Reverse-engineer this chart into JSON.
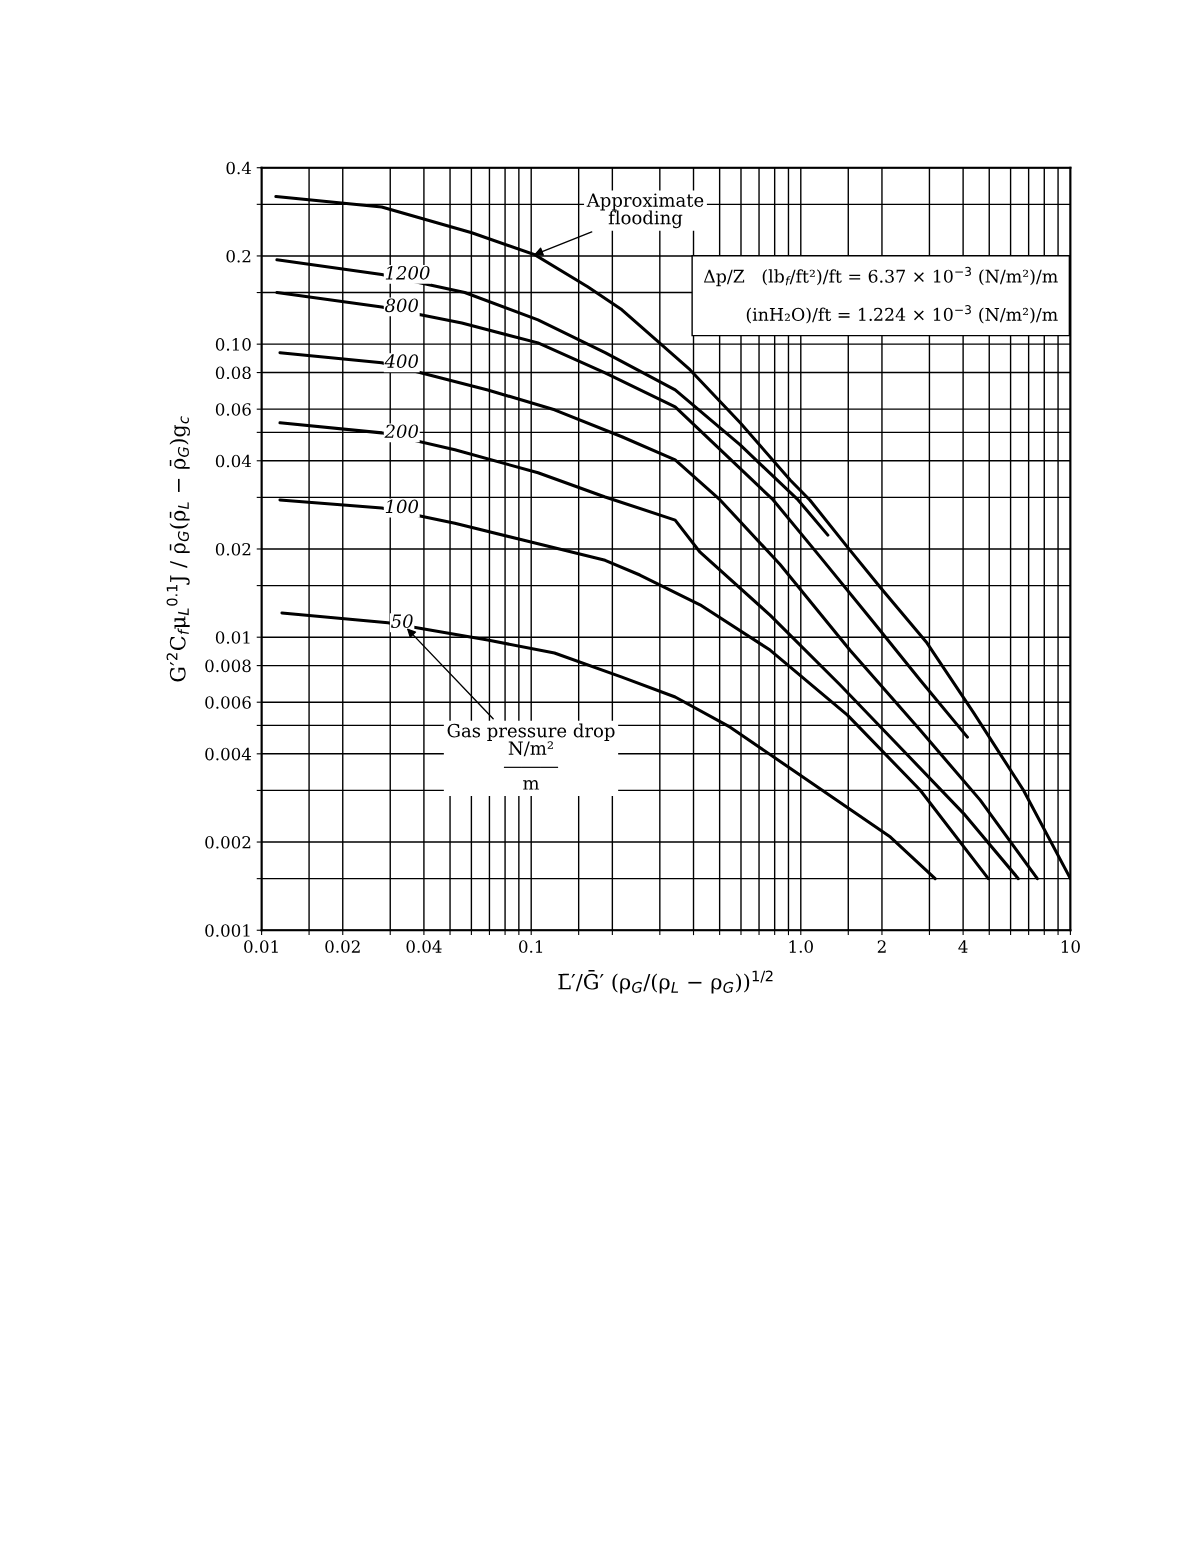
{
  "chart_data": {
    "type": "line",
    "log": "xy",
    "grid": true,
    "marker": "none",
    "line_style": "solid",
    "xlabel": "L̄′/Ḡ′ (ρ$_{G}$/(ρ$_{L}$ − ρ$_{G}$))$^{1/2}$",
    "ylabel": "G′$^{2}$C$_{f}$μ$_{L}$$^{0.1}$J / ρ̄$_{G}$(ρ̄$_{L}$ − ρ̄$_{G}$)g$_{c}$",
    "xlim": [
      0.01,
      10
    ],
    "ylim": [
      0.001,
      0.4
    ],
    "xticks": [
      0.01,
      0.02,
      0.04,
      0.1,
      {
        "value": 1,
        "label": "1.0"
      },
      2,
      4,
      10,
      {
        "value": 0.015,
        "label": null
      },
      {
        "value": 0.03,
        "label": null
      },
      {
        "value": 0.05,
        "label": null
      },
      {
        "value": 0.06,
        "label": null
      },
      {
        "value": 0.07,
        "label": null
      },
      {
        "value": 0.08,
        "label": null
      },
      {
        "value": 0.09,
        "label": null
      },
      {
        "value": 0.15,
        "label": null
      },
      {
        "value": 0.2,
        "label": null
      },
      {
        "value": 0.3,
        "label": null
      },
      {
        "value": 0.4,
        "label": null
      },
      {
        "value": 0.5,
        "label": null
      },
      {
        "value": 0.6,
        "label": null
      },
      {
        "value": 0.7,
        "label": null
      },
      {
        "value": 0.8,
        "label": null
      },
      {
        "value": 0.9,
        "label": null
      },
      {
        "value": 1.5,
        "label": null
      },
      {
        "value": 3,
        "label": null
      },
      {
        "value": 5,
        "label": null
      },
      {
        "value": 6,
        "label": null
      },
      {
        "value": 7,
        "label": null
      },
      {
        "value": 8,
        "label": null
      },
      {
        "value": 9,
        "label": null
      }
    ],
    "yticks": [
      0.001,
      0.002,
      0.004,
      0.006,
      0.008,
      0.01,
      0.02,
      0.04,
      0.06,
      0.08,
      {
        "value": 0.1,
        "label": "0.10"
      },
      0.2,
      0.4,
      {
        "value": 0.0015,
        "label": null
      },
      {
        "value": 0.003,
        "label": null
      },
      {
        "value": 0.005,
        "label": null
      },
      {
        "value": 0.015,
        "label": null
      },
      {
        "value": 0.03,
        "label": null
      },
      {
        "value": 0.05,
        "label": null
      },
      {
        "value": 0.15,
        "label": null
      },
      {
        "value": 0.3,
        "label": null
      }
    ],
    "series": [
      {
        "color": "#000000",
        "x": [
          0.0113,
          0.0279,
          0.0602,
          0.103,
          0.162,
          0.217,
          0.342,
          0.388,
          0.596,
          0.913,
          1.08,
          1.49,
          1.97,
          2.94,
          4.36,
          6.69,
          10
        ],
        "values": [
          0.319,
          0.294,
          0.24,
          0.202,
          0.157,
          0.131,
          0.0906,
          0.0818,
          0.0539,
          0.0344,
          0.0294,
          0.0203,
          0.0148,
          0.00955,
          0.00555,
          0.00301,
          0.0015
        ]
      },
      {
        "name": "1200",
        "color": "#000000",
        "x": [
          0.0114,
          0.0279,
          0.0567,
          0.106,
          0.188,
          0.342,
          0.596,
          0.977,
          1.26
        ],
        "values": [
          0.194,
          0.173,
          0.15,
          0.121,
          0.0935,
          0.0698,
          0.0453,
          0.0294,
          0.0223
        ]
      },
      {
        "name": "800",
        "color": "#000000",
        "x": [
          0.0114,
          0.0279,
          0.0553,
          0.106,
          0.188,
          0.342,
          0.79,
          1.18,
          1.81,
          2.77,
          4.15
        ],
        "values": [
          0.15,
          0.134,
          0.118,
          0.101,
          0.0798,
          0.0611,
          0.0294,
          0.0188,
          0.0116,
          0.00714,
          0.00456
        ]
      },
      {
        "name": "400",
        "color": "#000000",
        "x": [
          0.0117,
          0.0279,
          0.069,
          0.122,
          0.217,
          0.342,
          0.502,
          0.838,
          1.52,
          2.77,
          4.63,
          7.54
        ],
        "values": [
          0.0935,
          0.0864,
          0.0698,
          0.0597,
          0.0483,
          0.0403,
          0.0294,
          0.0177,
          0.00904,
          0.00482,
          0.00278,
          0.0015
        ]
      },
      {
        "name": "200",
        "color": "#000000",
        "x": [
          0.0117,
          0.0279,
          0.0521,
          0.106,
          0.188,
          0.342,
          0.423,
          0.769,
          1.4,
          2.55,
          4.07,
          6.41
        ],
        "values": [
          0.0539,
          0.0498,
          0.0436,
          0.0364,
          0.0301,
          0.0251,
          0.0195,
          0.0119,
          0.00687,
          0.00387,
          0.00247,
          0.0015
        ]
      },
      {
        "name": "100",
        "color": "#000000",
        "x": [
          0.0117,
          0.0279,
          0.0521,
          0.0923,
          0.188,
          0.253,
          0.423,
          0.769,
          1.49,
          2.77,
          4.96
        ],
        "values": [
          0.0294,
          0.0276,
          0.0245,
          0.0215,
          0.0183,
          0.0163,
          0.0129,
          0.00904,
          0.00542,
          0.00301,
          0.0015
        ]
      },
      {
        "name": "50",
        "color": "#000000",
        "x": [
          0.0119,
          0.0294,
          0.069,
          0.122,
          0.217,
          0.342,
          0.547,
          1.06,
          2.15,
          3.15
        ],
        "values": [
          0.0121,
          0.0112,
          0.00978,
          0.00883,
          0.00731,
          0.00625,
          0.00493,
          0.00325,
          0.00208,
          0.0015
        ]
      }
    ],
    "annotations": [
      {
        "text": "Approximate\nflooding",
        "x": 0.1,
        "y": 0.2
      },
      {
        "text": "Gas pressure drop\nN/m²\n―――\nm",
        "x": 0.034,
        "y": 0.0109
      },
      "Δp/Z   (lb$_{f}$/ft²)/ft = 6.37 × 10$^{−3}$ (N/m²)/m",
      "(inH₂O)/ft = 1.224 × 10$^{−3}$ (N/m²)/m"
    ]
  }
}
